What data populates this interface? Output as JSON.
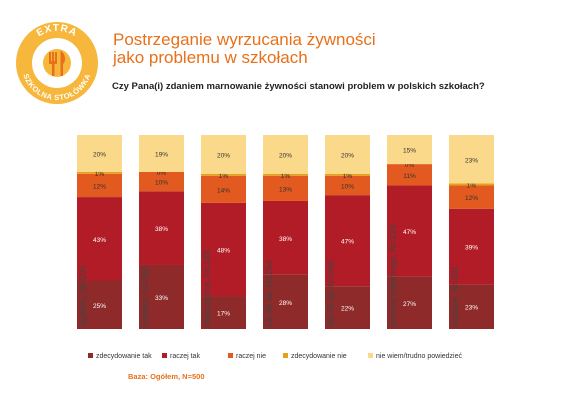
{
  "logo": {
    "top_text": "EXTRA",
    "bottom_text": "SZKOLNA STOŁÓWKA",
    "icon": "fork-knife-icon",
    "colors": {
      "outer": "#f6b73c",
      "inner": "#ffffff",
      "accent": "#e8701a"
    }
  },
  "header": {
    "title_line1": "Postrzeganie wyrzucania żywności",
    "title_line2": "jako problemu w szkołach",
    "question": "Czy Pana(i) zdaniem marnowanie żywności stanowi problem w polskich szkołach?"
  },
  "chart_data": {
    "type": "bar",
    "stacked": true,
    "percent": true,
    "ylim": [
      0,
      100
    ],
    "grid": false,
    "legend_position": "bottom",
    "categories": [
      "ogółem, N=500",
      "kobieta, N=252",
      "mężczyzna, N=248",
      "18-35 lat, N=254",
      "36-75 lat, N=246",
      "poniżej średniego, N=219",
      "wyższe, N=281"
    ],
    "series": [
      {
        "name": "zdecydowanie tak",
        "color": "#8e2a2a",
        "values": [
          25,
          33,
          17,
          28,
          22,
          27,
          23
        ]
      },
      {
        "name": "raczej tak",
        "color": "#b21c27",
        "values": [
          43,
          38,
          48,
          38,
          47,
          47,
          39
        ]
      },
      {
        "name": "raczej nie",
        "color": "#e25a1f",
        "values": [
          12,
          10,
          14,
          13,
          10,
          11,
          12
        ]
      },
      {
        "name": "zdecydowanie nie",
        "color": "#e7a019",
        "values": [
          1,
          0,
          1,
          1,
          1,
          0,
          1
        ]
      },
      {
        "name": "nie wiem/trudno powiedzieć",
        "color": "#fbd98a",
        "values": [
          20,
          19,
          20,
          20,
          20,
          15,
          23
        ]
      }
    ],
    "group_label_color": "#444444"
  },
  "base_note": "Baza: Ogółem, N=500"
}
